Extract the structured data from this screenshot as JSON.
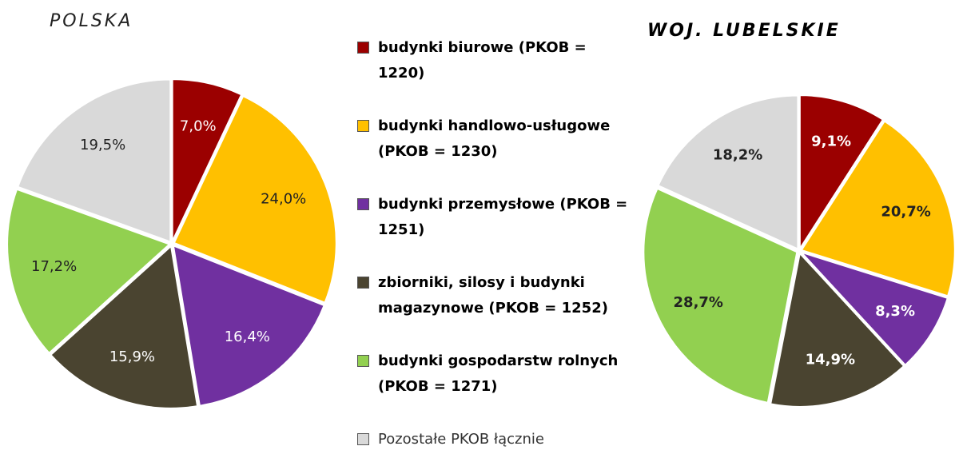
{
  "chart_data": [
    {
      "type": "pie",
      "title": "POLSKA",
      "categories": [
        "budynki biurowe (PKOB = 1220)",
        "budynki handlowo-usługowe (PKOB = 1230)",
        "budynki przemysłowe (PKOB = 1251)",
        "zbiorniki, silosy i budynki magazynowe (PKOB = 1252)",
        "budynki gospodarstw rolnych (PKOB = 1271)",
        "Pozostałe PKOB łącznie"
      ],
      "colors": [
        "#9b0000",
        "#ffc000",
        "#7030a0",
        "#4a4430",
        "#92d050",
        "#d9d9d9"
      ],
      "values": [
        7.0,
        24.0,
        16.4,
        15.9,
        17.2,
        19.5
      ],
      "value_labels": [
        "7,0%",
        "24,0%",
        "16,4%",
        "15,9%",
        "17,2%",
        "19,5%"
      ]
    },
    {
      "type": "pie",
      "title": "WOJ. LUBELSKIE",
      "values": [
        9.1,
        20.7,
        8.3,
        14.9,
        28.7,
        18.2
      ],
      "value_labels": [
        "9,1%",
        "20,7%",
        "8,3%",
        "14,9%",
        "28,7%",
        "18,2%"
      ]
    }
  ]
}
